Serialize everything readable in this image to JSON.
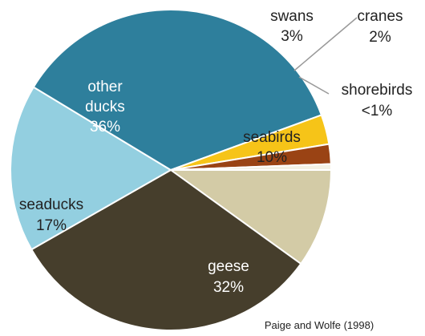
{
  "chart_data": {
    "type": "pie",
    "slices": [
      {
        "label": "seabirds",
        "value_text": "10%",
        "value": 10,
        "color": "#d3cba6"
      },
      {
        "label": "geese",
        "value_text": "32%",
        "value": 32,
        "color": "#463e2c"
      },
      {
        "label": "seaducks",
        "value_text": "17%",
        "value": 17,
        "color": "#93cfe0"
      },
      {
        "label": "other ducks",
        "value_text": "36%",
        "value": 36,
        "color": "#2e7f9c"
      },
      {
        "label": "swans",
        "value_text": "3%",
        "value": 3,
        "color": "#f6c418"
      },
      {
        "label": "cranes",
        "value_text": "2%",
        "value": 2,
        "color": "#9a4314"
      },
      {
        "label": "shorebirds",
        "value_text": "<1%",
        "value": 0.6,
        "color": "#f4f1e4"
      }
    ],
    "source": "Paige and Wolfe (1998)"
  }
}
